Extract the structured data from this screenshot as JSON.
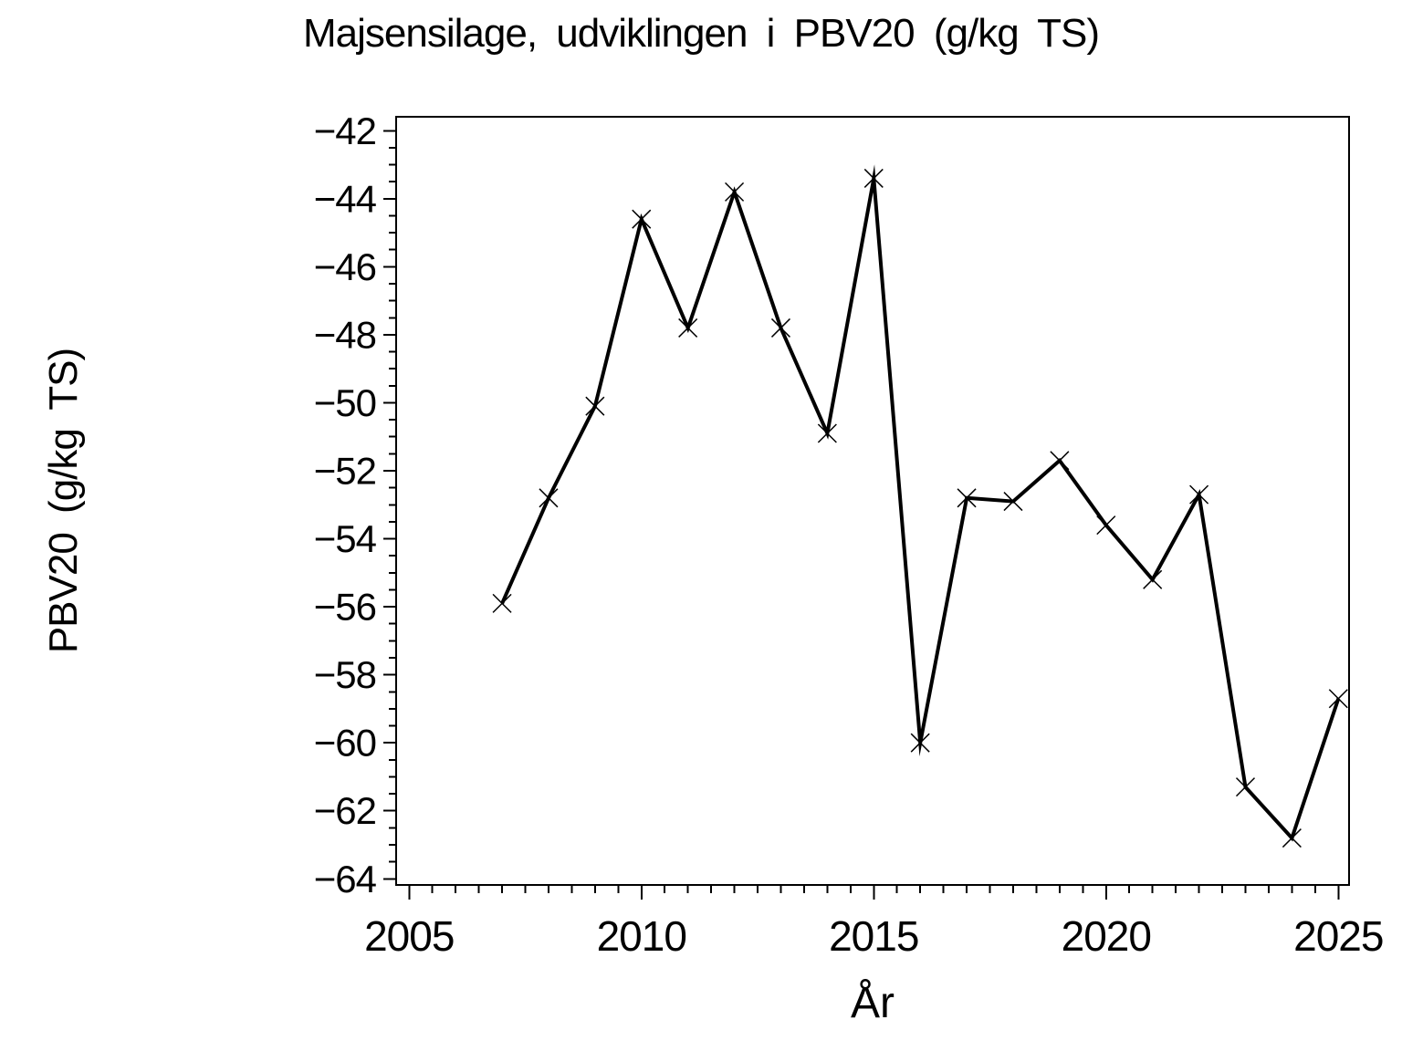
{
  "chart_data": {
    "type": "line",
    "title": "Majsensilage, udviklingen i PBV20 (g/kg TS)",
    "xlabel": "År",
    "ylabel": "PBV20 (g/kg TS)",
    "series": [
      {
        "name": "PBV20",
        "x": [
          2007,
          2008,
          2009,
          2010,
          2011,
          2012,
          2013,
          2014,
          2015,
          2016,
          2017,
          2018,
          2019,
          2020,
          2021,
          2022,
          2023,
          2024,
          2025
        ],
        "y": [
          -55.9,
          -52.8,
          -50.1,
          -44.6,
          -47.8,
          -43.8,
          -47.8,
          -50.9,
          -43.4,
          -60.0,
          -52.8,
          -52.9,
          -51.7,
          -53.6,
          -55.2,
          -52.7,
          -61.3,
          -62.8,
          -58.7
        ]
      }
    ],
    "marker": "x",
    "line_color": "#000000",
    "background_color": "#ffffff",
    "grid": false,
    "legend": "none",
    "xlim": [
      2004.72,
      2025.23
    ],
    "ylim": [
      -64.18,
      -41.59
    ],
    "x_major_ticks": [
      2005,
      2010,
      2015,
      2020,
      2025
    ],
    "x_tick_labels": [
      "2005",
      "2010",
      "2015",
      "2020",
      "2025"
    ],
    "x_minor_step": 0.5,
    "x_minor_range": [
      2005,
      2025
    ],
    "y_major_ticks": [
      -42,
      -44,
      -46,
      -48,
      -50,
      -52,
      -54,
      -56,
      -58,
      -60,
      -62,
      -64
    ],
    "y_tick_labels": [
      "−42",
      "−44",
      "−46",
      "−48",
      "−50",
      "−52",
      "−54",
      "−56",
      "−58",
      "−60",
      "−62",
      "−64"
    ],
    "y_minor_step": 0.5,
    "y_minor_range": [
      -64,
      -42
    ]
  }
}
